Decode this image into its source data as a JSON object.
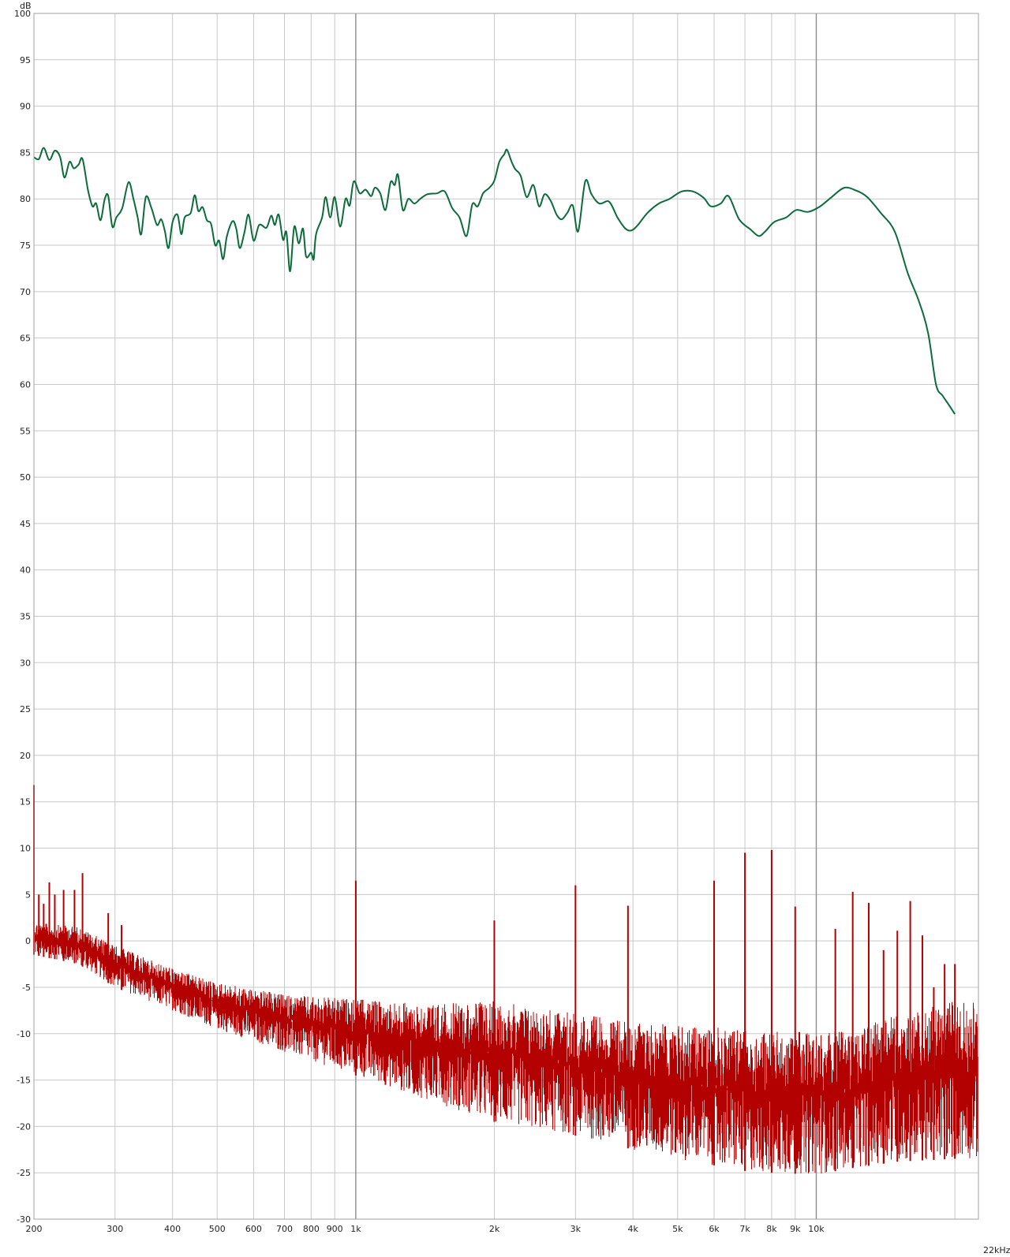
{
  "chart_data": {
    "type": "line",
    "title": "",
    "xlabel": "",
    "ylabel": "",
    "y_unit_label": "dB",
    "x_unit_label": "22kHz",
    "xscale": "log",
    "xlim": [
      200,
      22500
    ],
    "ylim": [
      -30,
      100
    ],
    "grid": true,
    "y_ticks": [
      100,
      95,
      90,
      85,
      80,
      75,
      70,
      65,
      60,
      55,
      50,
      45,
      40,
      35,
      30,
      25,
      20,
      15,
      10,
      5,
      0,
      -5,
      -10,
      -15,
      -20,
      -25,
      -30
    ],
    "x_ticks": [
      {
        "value": 200,
        "label": "200"
      },
      {
        "value": 300,
        "label": "300"
      },
      {
        "value": 400,
        "label": "400"
      },
      {
        "value": 500,
        "label": "500"
      },
      {
        "value": 600,
        "label": "600"
      },
      {
        "value": 700,
        "label": "700"
      },
      {
        "value": 800,
        "label": "800"
      },
      {
        "value": 900,
        "label": "900"
      },
      {
        "value": 1000,
        "label": "1k"
      },
      {
        "value": 2000,
        "label": "2k"
      },
      {
        "value": 3000,
        "label": "3k"
      },
      {
        "value": 4000,
        "label": "4k"
      },
      {
        "value": 5000,
        "label": "5k"
      },
      {
        "value": 6000,
        "label": "6k"
      },
      {
        "value": 7000,
        "label": "7k"
      },
      {
        "value": 8000,
        "label": "8k"
      },
      {
        "value": 9000,
        "label": "9k"
      },
      {
        "value": 10000,
        "label": "10k"
      },
      {
        "value": 22000,
        "label": ""
      }
    ],
    "major_x_lines": [
      1000,
      10000
    ],
    "series": [
      {
        "color": "#0b6b3a",
        "style": "smooth",
        "points": [
          [
            200,
            84.5
          ],
          [
            205,
            84.3
          ],
          [
            210,
            85.5
          ],
          [
            216,
            84.2
          ],
          [
            222,
            85.2
          ],
          [
            228,
            84.5
          ],
          [
            233,
            82.3
          ],
          [
            239,
            84.0
          ],
          [
            244,
            83.3
          ],
          [
            250,
            83.7
          ],
          [
            255,
            84.3
          ],
          [
            262,
            81.0
          ],
          [
            268,
            79.2
          ],
          [
            273,
            79.5
          ],
          [
            279,
            77.7
          ],
          [
            285,
            80.0
          ],
          [
            290,
            80.3
          ],
          [
            296,
            77.0
          ],
          [
            302,
            78.0
          ],
          [
            311,
            79.0
          ],
          [
            321,
            81.8
          ],
          [
            329,
            80.0
          ],
          [
            336,
            78.0
          ],
          [
            342,
            76.2
          ],
          [
            350,
            80.2
          ],
          [
            360,
            79.0
          ],
          [
            370,
            77.2
          ],
          [
            378,
            77.8
          ],
          [
            385,
            76.5
          ],
          [
            392,
            74.7
          ],
          [
            400,
            77.5
          ],
          [
            410,
            78.3
          ],
          [
            418,
            76.2
          ],
          [
            425,
            78.0
          ],
          [
            438,
            78.5
          ],
          [
            447,
            80.4
          ],
          [
            455,
            78.7
          ],
          [
            465,
            79.1
          ],
          [
            475,
            77.7
          ],
          [
            485,
            77.3
          ],
          [
            495,
            75.0
          ],
          [
            505,
            75.5
          ],
          [
            515,
            73.5
          ],
          [
            525,
            76.0
          ],
          [
            540,
            77.6
          ],
          [
            550,
            76.8
          ],
          [
            560,
            74.7
          ],
          [
            573,
            76.4
          ],
          [
            585,
            78.3
          ],
          [
            600,
            75.5
          ],
          [
            617,
            77.2
          ],
          [
            640,
            76.9
          ],
          [
            655,
            78.2
          ],
          [
            667,
            77.2
          ],
          [
            680,
            78.3
          ],
          [
            695,
            75.6
          ],
          [
            707,
            76.4
          ],
          [
            720,
            72.2
          ],
          [
            735,
            77.0
          ],
          [
            752,
            75.2
          ],
          [
            768,
            76.8
          ],
          [
            780,
            73.8
          ],
          [
            800,
            74.2
          ],
          [
            810,
            73.5
          ],
          [
            820,
            76.2
          ],
          [
            845,
            78.0
          ],
          [
            860,
            80.2
          ],
          [
            880,
            78.0
          ],
          [
            900,
            80.2
          ],
          [
            925,
            77.0
          ],
          [
            950,
            80.0
          ],
          [
            970,
            79.3
          ],
          [
            990,
            81.9
          ],
          [
            1020,
            80.6
          ],
          [
            1050,
            81.0
          ],
          [
            1080,
            80.3
          ],
          [
            1100,
            81.2
          ],
          [
            1130,
            80.6
          ],
          [
            1160,
            78.8
          ],
          [
            1190,
            81.8
          ],
          [
            1215,
            81.5
          ],
          [
            1235,
            82.6
          ],
          [
            1265,
            78.8
          ],
          [
            1300,
            80.0
          ],
          [
            1340,
            79.5
          ],
          [
            1380,
            80.0
          ],
          [
            1430,
            80.5
          ],
          [
            1500,
            80.6
          ],
          [
            1560,
            80.8
          ],
          [
            1620,
            79.0
          ],
          [
            1680,
            78.0
          ],
          [
            1740,
            76.0
          ],
          [
            1790,
            79.4
          ],
          [
            1840,
            79.2
          ],
          [
            1890,
            80.6
          ],
          [
            1950,
            81.2
          ],
          [
            2000,
            82.0
          ],
          [
            2050,
            84.0
          ],
          [
            2100,
            84.8
          ],
          [
            2130,
            85.3
          ],
          [
            2180,
            84.0
          ],
          [
            2220,
            83.2
          ],
          [
            2280,
            82.5
          ],
          [
            2350,
            80.2
          ],
          [
            2430,
            81.5
          ],
          [
            2500,
            79.2
          ],
          [
            2570,
            80.5
          ],
          [
            2650,
            79.8
          ],
          [
            2730,
            78.3
          ],
          [
            2800,
            77.8
          ],
          [
            2880,
            78.5
          ],
          [
            2960,
            79.3
          ],
          [
            3040,
            76.5
          ],
          [
            3150,
            81.9
          ],
          [
            3250,
            80.5
          ],
          [
            3380,
            79.5
          ],
          [
            3550,
            79.7
          ],
          [
            3700,
            78.0
          ],
          [
            3850,
            76.8
          ],
          [
            3970,
            76.6
          ],
          [
            4100,
            77.2
          ],
          [
            4300,
            78.5
          ],
          [
            4550,
            79.5
          ],
          [
            4800,
            80.0
          ],
          [
            5100,
            80.8
          ],
          [
            5400,
            80.8
          ],
          [
            5700,
            80.1
          ],
          [
            5900,
            79.2
          ],
          [
            6200,
            79.5
          ],
          [
            6450,
            80.3
          ],
          [
            6800,
            77.8
          ],
          [
            7200,
            76.7
          ],
          [
            7500,
            76.0
          ],
          [
            7750,
            76.5
          ],
          [
            8100,
            77.5
          ],
          [
            8600,
            78.0
          ],
          [
            9050,
            78.8
          ],
          [
            9600,
            78.6
          ],
          [
            10200,
            79.2
          ],
          [
            10800,
            80.2
          ],
          [
            11500,
            81.2
          ],
          [
            12200,
            80.9
          ],
          [
            12900,
            80.2
          ],
          [
            13800,
            78.5
          ],
          [
            14800,
            76.5
          ],
          [
            15800,
            72.0
          ],
          [
            16700,
            69.0
          ],
          [
            17500,
            65.5
          ],
          [
            18200,
            60.0
          ],
          [
            18800,
            58.8
          ],
          [
            19400,
            57.8
          ],
          [
            20000,
            56.8
          ]
        ]
      },
      {
        "color": "#b30000",
        "style": "noise_band",
        "lower_envelope": [
          [
            200,
            -1.5
          ],
          [
            250,
            -2.5
          ],
          [
            300,
            -5.0
          ],
          [
            400,
            -7.5
          ],
          [
            500,
            -9.5
          ],
          [
            700,
            -12.0
          ],
          [
            1000,
            -14.5
          ],
          [
            1500,
            -17.5
          ],
          [
            2000,
            -19.5
          ],
          [
            3000,
            -21.0
          ],
          [
            4000,
            -22.5
          ],
          [
            5000,
            -23.5
          ],
          [
            6000,
            -24.2
          ],
          [
            7000,
            -24.8
          ],
          [
            8000,
            -25.0
          ],
          [
            10000,
            -25.2
          ],
          [
            12000,
            -24.5
          ],
          [
            15000,
            -23.8
          ],
          [
            20000,
            -23.5
          ]
        ],
        "upper_envelope": [
          [
            200,
            2.0
          ],
          [
            250,
            1.5
          ],
          [
            300,
            -0.5
          ],
          [
            400,
            -3.0
          ],
          [
            500,
            -4.5
          ],
          [
            700,
            -5.8
          ],
          [
            1000,
            -6.3
          ],
          [
            1500,
            -6.8
          ],
          [
            2000,
            -6.5
          ],
          [
            3000,
            -7.8
          ],
          [
            4000,
            -8.8
          ],
          [
            5000,
            -9.0
          ],
          [
            6000,
            -9.3
          ],
          [
            7000,
            -9.5
          ],
          [
            8000,
            -9.8
          ],
          [
            10000,
            -9.8
          ],
          [
            12000,
            -9.5
          ],
          [
            15000,
            -8.0
          ],
          [
            20000,
            -6.5
          ]
        ],
        "peaks": [
          [
            200,
            16.8
          ],
          [
            205,
            5.0
          ],
          [
            210,
            4.0
          ],
          [
            216,
            6.3
          ],
          [
            222,
            5.0
          ],
          [
            232,
            5.5
          ],
          [
            245,
            5.5
          ],
          [
            255,
            7.3
          ],
          [
            290,
            3.0
          ],
          [
            310,
            1.7
          ],
          [
            1000,
            6.5
          ],
          [
            1999,
            2.2
          ],
          [
            3000,
            6.0
          ],
          [
            3900,
            3.8
          ],
          [
            6000,
            6.5
          ],
          [
            7000,
            9.5
          ],
          [
            8000,
            9.8
          ],
          [
            9000,
            3.7
          ],
          [
            11000,
            1.3
          ],
          [
            12000,
            5.3
          ],
          [
            13000,
            4.1
          ],
          [
            14000,
            -1.0
          ],
          [
            15000,
            1.1
          ],
          [
            16000,
            4.3
          ],
          [
            17000,
            0.6
          ],
          [
            18000,
            -5.0
          ],
          [
            19000,
            -2.5
          ],
          [
            20000,
            -2.5
          ]
        ]
      }
    ]
  }
}
